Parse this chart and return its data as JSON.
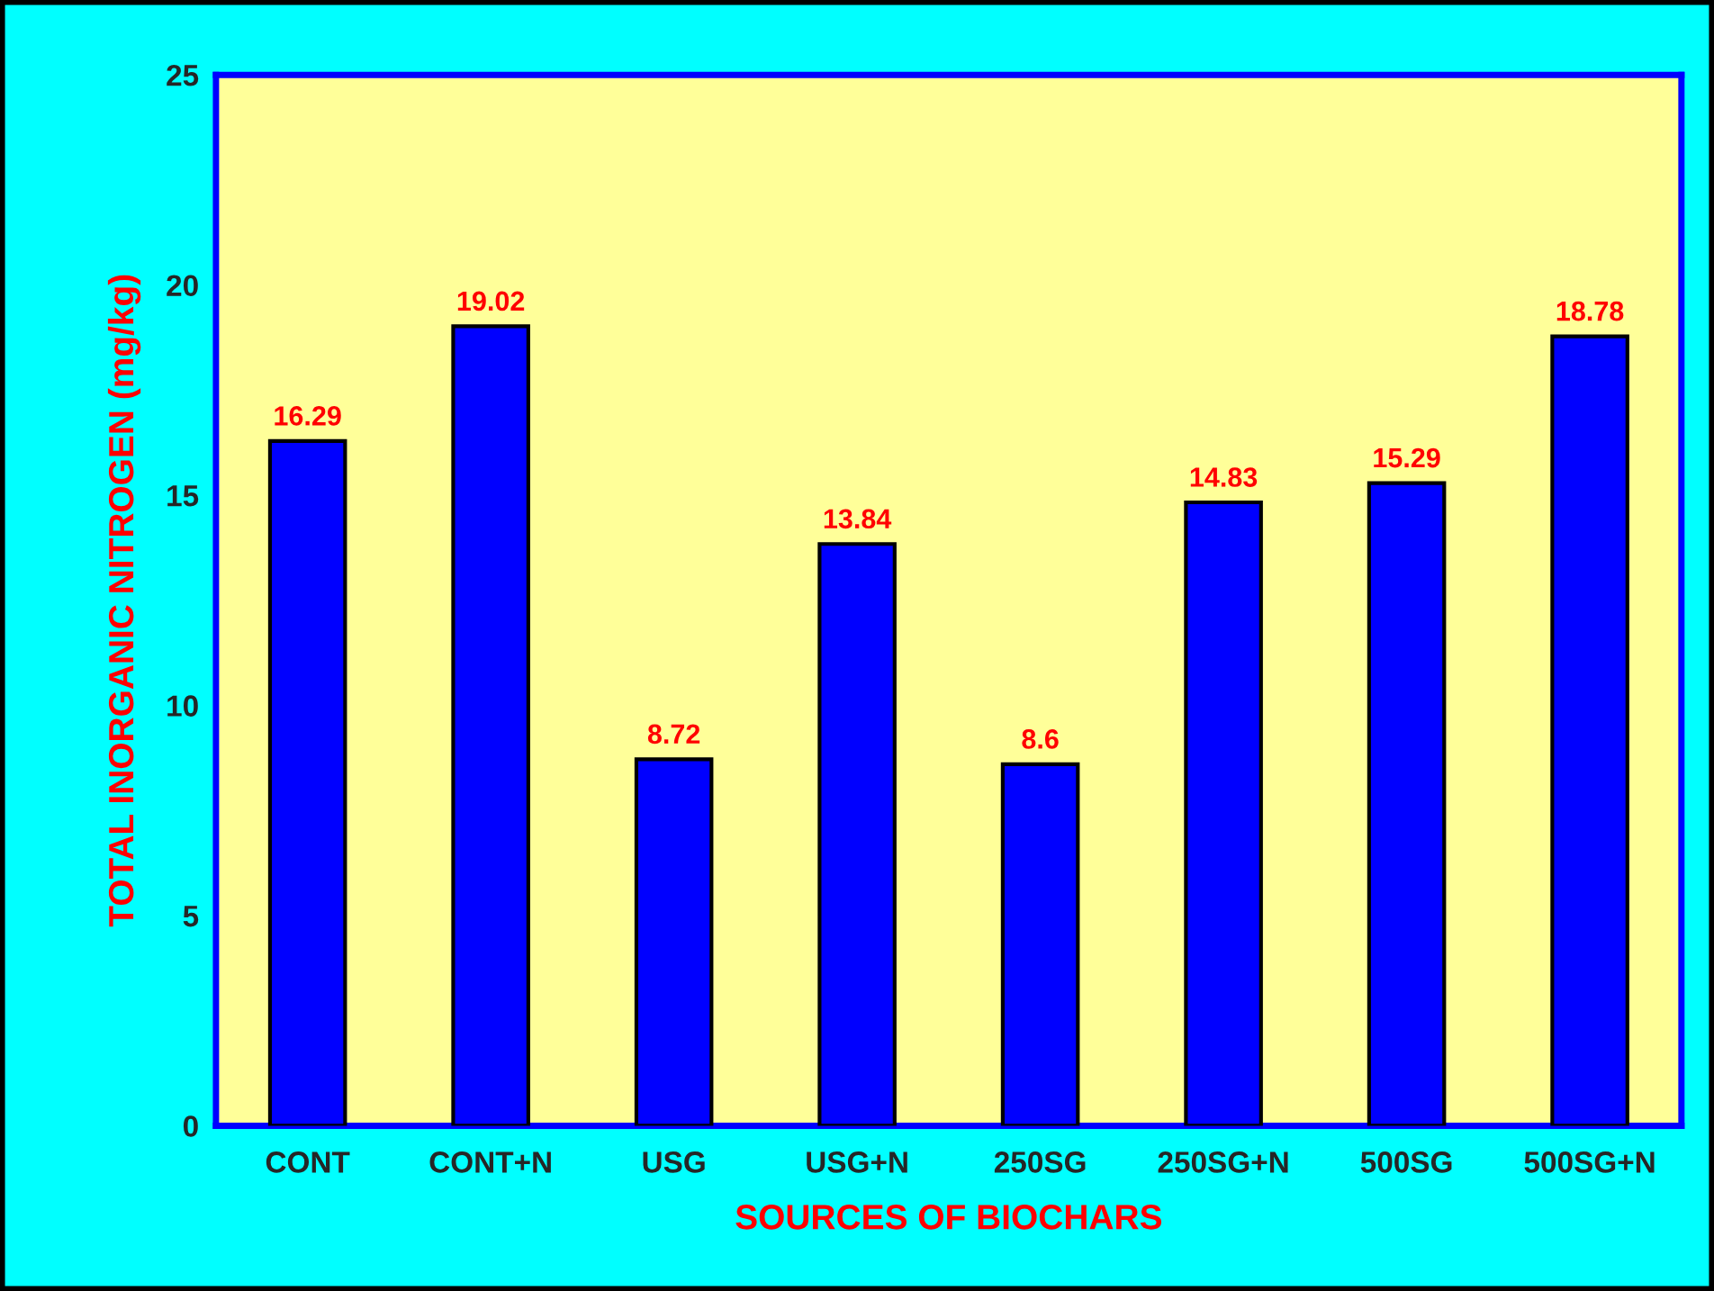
{
  "chart_data": {
    "type": "bar",
    "categories": [
      "CONT",
      "CONT+N",
      "USG",
      "USG+N",
      "250SG",
      "250SG+N",
      "500SG",
      "500SG+N"
    ],
    "values": [
      16.29,
      19.02,
      8.72,
      13.84,
      8.6,
      14.83,
      15.29,
      18.78
    ],
    "color": "#0000ff",
    "xlabel": "SOURCES OF BIOCHARS",
    "ylabel": "TOTAL INORGANIC NITROGEN (mg/kg)",
    "ylim": [
      0,
      25
    ],
    "yticks": [
      0,
      5,
      10,
      15,
      20,
      25
    ],
    "data_labels": true
  }
}
